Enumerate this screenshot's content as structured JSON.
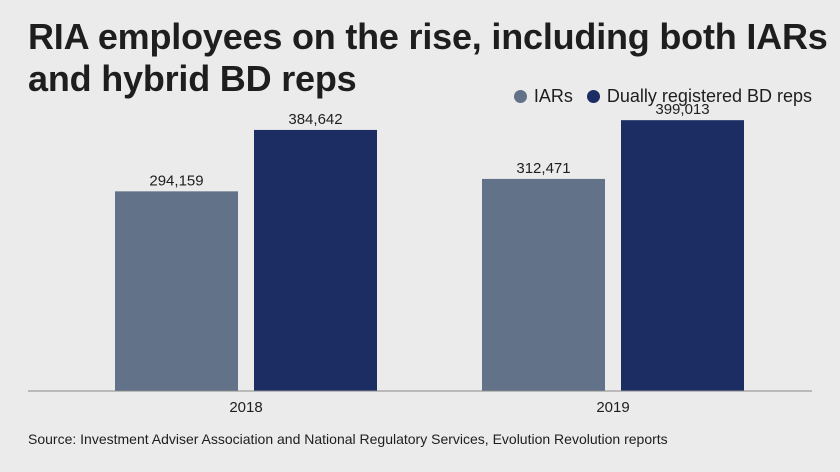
{
  "title": "RIA employees on the rise, including both IARs and hybrid BD reps",
  "source": "Source: Investment Adviser Association and National Regulatory Services, Evolution Revolution reports",
  "legend": [
    {
      "label": "IARs",
      "color": "#627288"
    },
    {
      "label": "Dually registered BD reps",
      "color": "#1b2d63"
    }
  ],
  "chart_data": {
    "type": "bar",
    "categories": [
      "2018",
      "2019"
    ],
    "series": [
      {
        "name": "IARs",
        "values": [
          294159,
          312471
        ],
        "labels": [
          "294,159",
          "312,471"
        ],
        "color": "#627288"
      },
      {
        "name": "Dually registered BD reps",
        "values": [
          384642,
          399013
        ],
        "labels": [
          "384,642",
          "399,013"
        ],
        "color": "#1b2d63"
      }
    ],
    "ylim": [
      0,
      414000
    ],
    "grid": false,
    "legend_position": "top-right"
  }
}
